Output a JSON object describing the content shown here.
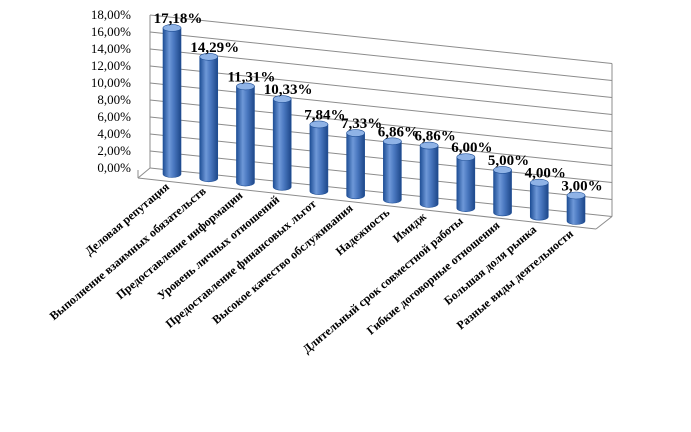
{
  "chart_data": {
    "type": "bar",
    "style": "3d-cylinder",
    "categories": [
      "Деловая репутация",
      "Выполнение взаимных обязательств",
      "Предоставление  информации",
      "Уровень личных отношений",
      "Предоставление финансовых льгот",
      "Высокое качество обслуживания",
      "Надежность",
      "Имидж",
      "Длительный срок совместной работы",
      "Гибкие договорные отношения",
      "Большая доля рынка",
      "Разные виды деятельности"
    ],
    "values": [
      17.18,
      14.29,
      11.31,
      10.33,
      7.84,
      7.33,
      6.86,
      6.86,
      6.0,
      5.0,
      4.0,
      3.0
    ],
    "data_labels": [
      "17,18%",
      "14,29%",
      "11,31%",
      "10,33%",
      "7,84%",
      "7,33%",
      "6,86%",
      "6,86%",
      "6,00%",
      "5,00%",
      "4,00%",
      "3,00%"
    ],
    "y_ticks": [
      "0,00%",
      "2,00%",
      "4,00%",
      "6,00%",
      "8,00%",
      "10,00%",
      "12,00%",
      "14,00%",
      "16,00%",
      "18,00%"
    ],
    "ylim": [
      0,
      18
    ],
    "grid": true,
    "colors": {
      "bar": "#4a78c0",
      "bar_dark": "#1f4f96",
      "bar_light": "#8fb3e6",
      "grid": "#8c8c8c"
    }
  }
}
